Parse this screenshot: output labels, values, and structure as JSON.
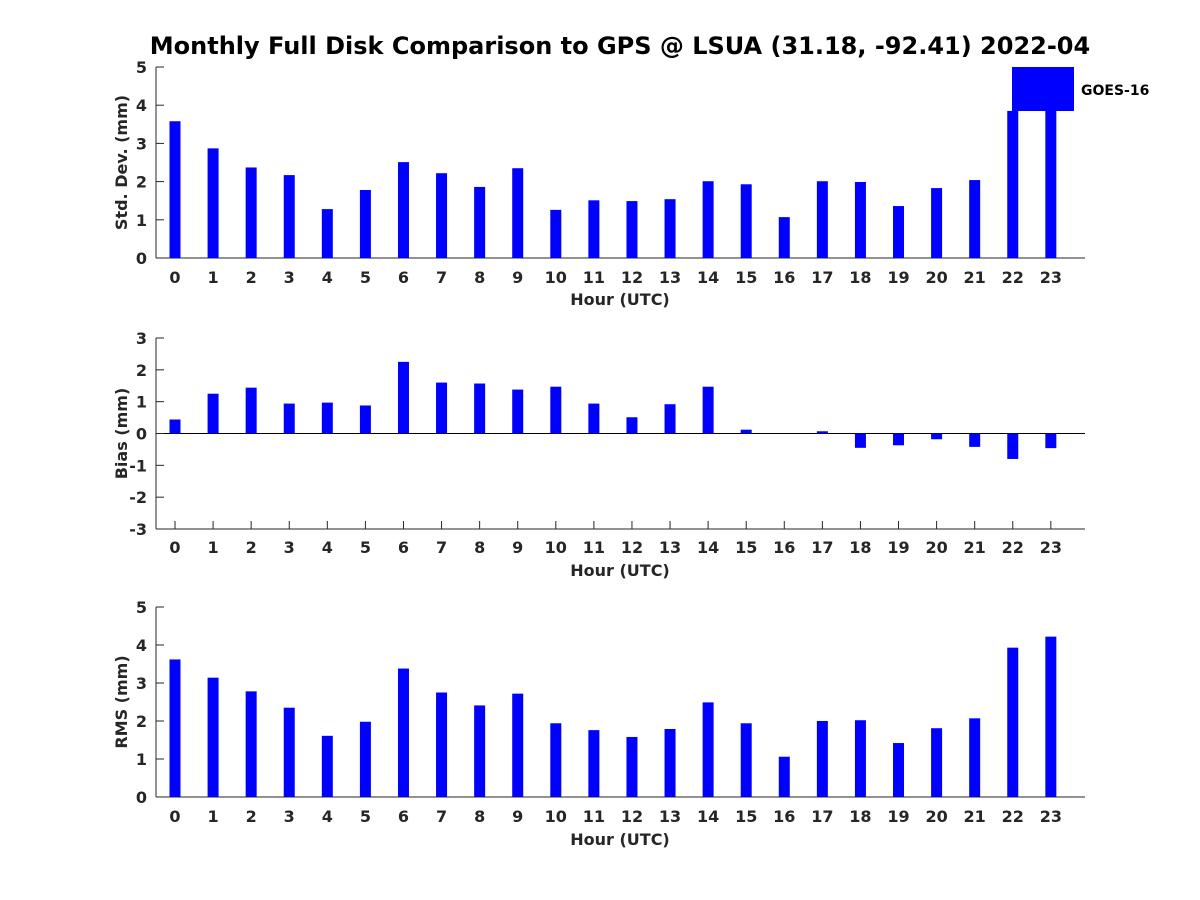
{
  "title": "Monthly Full Disk Comparison to GPS @ LSUA (31.18, -92.41) 2022-04",
  "legend": {
    "label": "GOES-16",
    "placement": "top-right"
  },
  "colors": {
    "bar": "#0000ff",
    "axis": "#262626",
    "title": "#000000"
  },
  "chart_data": [
    {
      "type": "bar",
      "title": "Monthly Full Disk Comparison to GPS @ LSUA (31.18, -92.41) 2022-04",
      "xlabel": "Hour (UTC)",
      "ylabel": "Std. Dev. (mm)",
      "ylim": [
        0,
        5
      ],
      "yticks": [
        0,
        1,
        2,
        3,
        4,
        5
      ],
      "grid": false,
      "categories": [
        "0",
        "1",
        "2",
        "3",
        "4",
        "5",
        "6",
        "7",
        "8",
        "9",
        "10",
        "11",
        "12",
        "13",
        "14",
        "15",
        "16",
        "17",
        "18",
        "19",
        "20",
        "21",
        "22",
        "23"
      ],
      "series": [
        {
          "name": "GOES-16",
          "values": [
            3.58,
            2.87,
            2.37,
            2.17,
            1.28,
            1.78,
            2.51,
            2.22,
            1.86,
            2.35,
            1.26,
            1.51,
            1.49,
            1.54,
            2.01,
            1.93,
            1.07,
            2.01,
            1.99,
            1.36,
            1.83,
            2.04,
            3.85,
            4.0
          ]
        }
      ]
    },
    {
      "type": "bar",
      "xlabel": "Hour (UTC)",
      "ylabel": "Bias (mm)",
      "ylim": [
        -3,
        3
      ],
      "yticks": [
        -3,
        -2,
        -1,
        0,
        1,
        2,
        3
      ],
      "grid": false,
      "categories": [
        "0",
        "1",
        "2",
        "3",
        "4",
        "5",
        "6",
        "7",
        "8",
        "9",
        "10",
        "11",
        "12",
        "13",
        "14",
        "15",
        "16",
        "17",
        "18",
        "19",
        "20",
        "21",
        "22",
        "23"
      ],
      "series": [
        {
          "name": "GOES-16",
          "values": [
            0.44,
            1.25,
            1.44,
            0.94,
            0.97,
            0.88,
            2.25,
            1.6,
            1.57,
            1.38,
            1.47,
            0.94,
            0.51,
            0.92,
            1.47,
            0.12,
            0.0,
            0.07,
            -0.45,
            -0.37,
            -0.18,
            -0.42,
            -0.8,
            -0.46
          ]
        }
      ]
    },
    {
      "type": "bar",
      "xlabel": "Hour (UTC)",
      "ylabel": "RMS (mm)",
      "ylim": [
        0,
        5
      ],
      "yticks": [
        0,
        1,
        2,
        3,
        4,
        5
      ],
      "grid": false,
      "categories": [
        "0",
        "1",
        "2",
        "3",
        "4",
        "5",
        "6",
        "7",
        "8",
        "9",
        "10",
        "11",
        "12",
        "13",
        "14",
        "15",
        "16",
        "17",
        "18",
        "19",
        "20",
        "21",
        "22",
        "23"
      ],
      "series": [
        {
          "name": "GOES-16",
          "values": [
            3.62,
            3.14,
            2.78,
            2.35,
            1.61,
            1.98,
            3.38,
            2.75,
            2.41,
            2.72,
            1.94,
            1.76,
            1.58,
            1.79,
            2.49,
            1.94,
            1.06,
            2.0,
            2.02,
            1.42,
            1.81,
            2.07,
            3.93,
            4.22
          ]
        }
      ]
    }
  ]
}
